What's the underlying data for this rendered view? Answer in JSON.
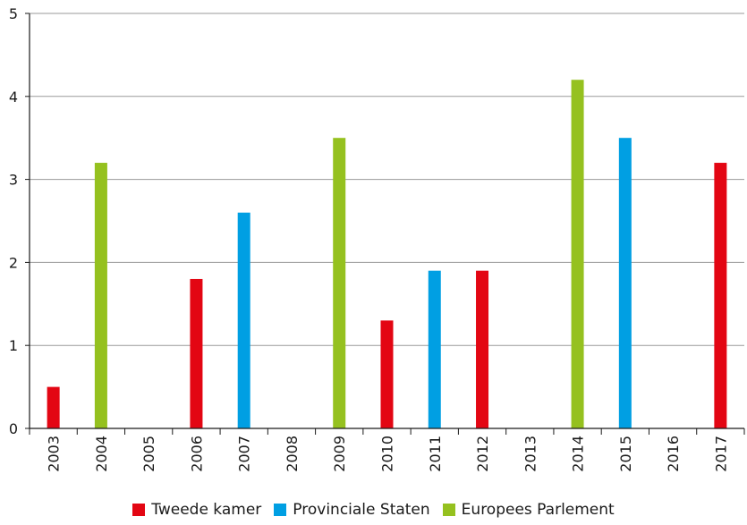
{
  "chart_data": {
    "type": "bar",
    "categories": [
      "2003",
      "2004",
      "2005",
      "2006",
      "2007",
      "2008",
      "2009",
      "2010",
      "2011",
      "2012",
      "2013",
      "2014",
      "2015",
      "2016",
      "2017"
    ],
    "series": [
      {
        "name": "Tweede kamer",
        "color": "#e30613",
        "values": [
          0.5,
          null,
          null,
          1.8,
          null,
          null,
          null,
          1.3,
          null,
          1.9,
          null,
          null,
          null,
          null,
          3.2
        ]
      },
      {
        "name": "Provinciale Staten",
        "color": "#009fe3",
        "values": [
          null,
          null,
          null,
          null,
          2.6,
          null,
          null,
          null,
          1.9,
          null,
          null,
          null,
          3.5,
          null,
          null
        ]
      },
      {
        "name": "Europees Parlement",
        "color": "#95c11f",
        "values": [
          null,
          3.2,
          null,
          null,
          null,
          null,
          3.5,
          null,
          null,
          null,
          null,
          4.2,
          null,
          null,
          null
        ]
      }
    ],
    "ylim": [
      0,
      5
    ],
    "yticks": [
      0,
      1,
      2,
      3,
      4,
      5
    ],
    "grid": true,
    "legend_position": "bottom-center"
  }
}
